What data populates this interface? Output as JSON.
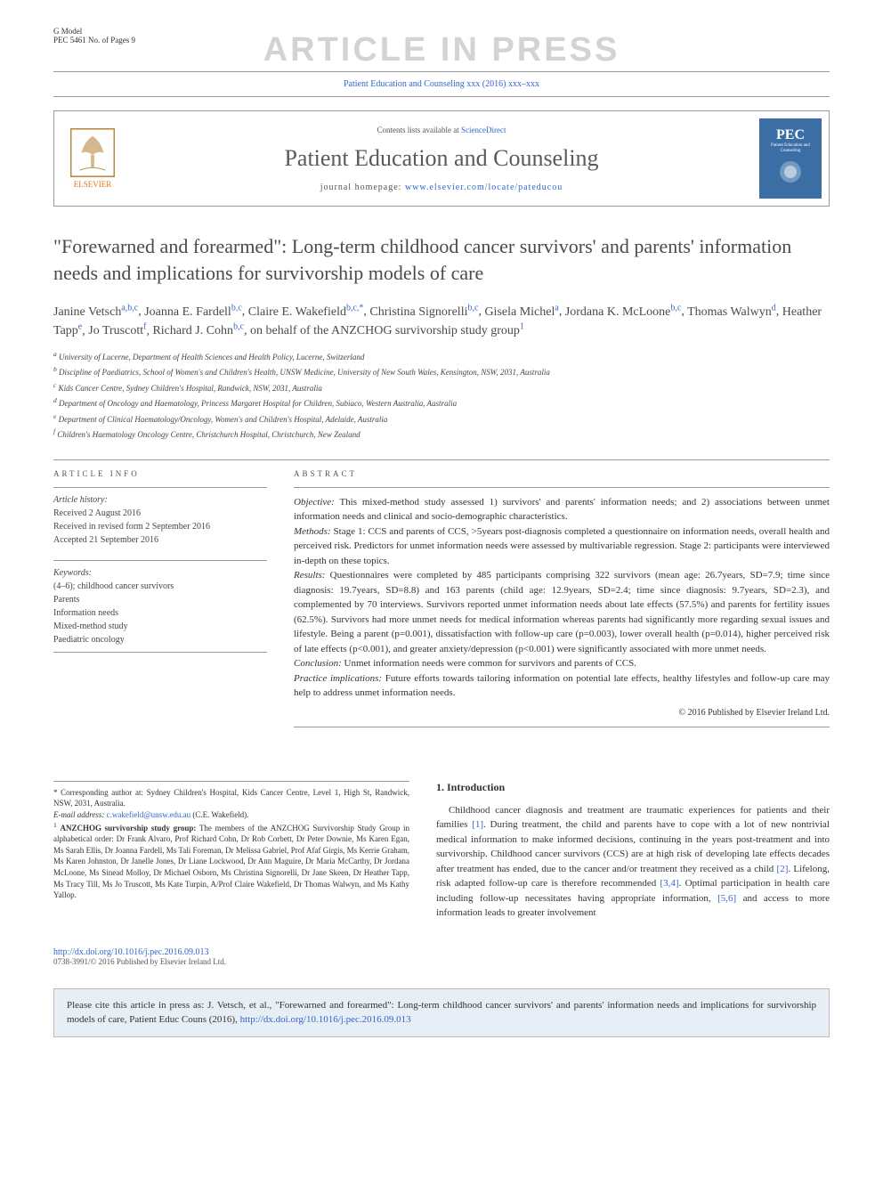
{
  "header": {
    "model_label": "G Model",
    "model_id": "PEC 5461 No. of Pages 9",
    "watermark": "ARTICLE IN PRESS",
    "citation_short": "Patient Education and Counseling xxx (2016) xxx–xxx"
  },
  "journal_box": {
    "elsevier_label": "ELSEVIER",
    "contents_text": "Contents lists available at ",
    "contents_link": "ScienceDirect",
    "journal_name": "Patient Education and Counseling",
    "homepage_label": "journal homepage: ",
    "homepage_url": "www.elsevier.com/locate/pateducou",
    "cover_title": "PEC",
    "cover_subtitle": "Patient Education and Counseling"
  },
  "article": {
    "title": "\"Forewarned and forearmed\": Long-term childhood cancer survivors' and parents' information needs and implications for survivorship models of care",
    "authors_html": "Janine Vetsch",
    "authors": [
      {
        "name": "Janine Vetsch",
        "aff": "a,b,c"
      },
      {
        "name": "Joanna E. Fardell",
        "aff": "b,c"
      },
      {
        "name": "Claire E. Wakefield",
        "aff": "b,c,*"
      },
      {
        "name": "Christina Signorelli",
        "aff": "b,c"
      },
      {
        "name": "Gisela Michel",
        "aff": "a"
      },
      {
        "name": "Jordana K. McLoone",
        "aff": "b,c"
      },
      {
        "name": "Thomas Walwyn",
        "aff": "d"
      },
      {
        "name": "Heather Tapp",
        "aff": "e"
      },
      {
        "name": "Jo Truscott",
        "aff": "f"
      },
      {
        "name": "Richard J. Cohn",
        "aff": "b,c"
      }
    ],
    "on_behalf": ", on behalf of the ANZCHOG survivorship study group",
    "on_behalf_sup": "1",
    "affiliations": [
      {
        "key": "a",
        "text": "University of Lucerne, Department of Health Sciences and Health Policy, Lucerne, Switzerland"
      },
      {
        "key": "b",
        "text": "Discipline of Paediatrics, School of Women's and Children's Health, UNSW Medicine, University of New South Wales, Kensington, NSW, 2031, Australia"
      },
      {
        "key": "c",
        "text": "Kids Cancer Centre, Sydney Children's Hospital, Randwick, NSW, 2031, Australia"
      },
      {
        "key": "d",
        "text": "Department of Oncology and Haematology, Princess Margaret Hospital for Children, Subiaco, Western Australia, Australia"
      },
      {
        "key": "e",
        "text": "Department of Clinical Haematology/Oncology, Women's and Children's Hospital, Adelaide, Australia"
      },
      {
        "key": "f",
        "text": "Children's Haematology Oncology Centre, Christchurch Hospital, Christchurch, New Zealand"
      }
    ]
  },
  "article_info": {
    "section_label": "ARTICLE INFO",
    "history_label": "Article history:",
    "received": "Received 2 August 2016",
    "revised": "Received in revised form 2 September 2016",
    "accepted": "Accepted 21 September 2016",
    "keywords_label": "Keywords:",
    "keywords": [
      "(4–6); childhood cancer survivors",
      "Parents",
      "Information needs",
      "Mixed-method study",
      "Paediatric oncology"
    ]
  },
  "abstract": {
    "section_label": "ABSTRACT",
    "objective_label": "Objective:",
    "objective": "This mixed-method study assessed 1) survivors' and parents' information needs; and 2) associations between unmet information needs and clinical and socio-demographic characteristics.",
    "methods_label": "Methods:",
    "methods": "Stage 1: CCS and parents of CCS, >5years post-diagnosis completed a questionnaire on information needs, overall health and perceived risk. Predictors for unmet information needs were assessed by multivariable regression. Stage 2: participants were interviewed in-depth on these topics.",
    "results_label": "Results:",
    "results": "Questionnaires were completed by 485 participants comprising 322 survivors (mean age: 26.7years, SD=7.9; time since diagnosis: 19.7years, SD=8.8) and 163 parents (child age: 12.9years, SD=2.4; time since diagnosis: 9.7years, SD=2.3), and complemented by 70 interviews. Survivors reported unmet information needs about late effects (57.5%) and parents for fertility issues (62.5%). Survivors had more unmet needs for medical information whereas parents had significantly more regarding sexual issues and lifestyle. Being a parent (p=0.001), dissatisfaction with follow-up care (p=0.003), lower overall health (p=0.014), higher perceived risk of late effects (p<0.001), and greater anxiety/depression (p<0.001) were significantly associated with more unmet needs.",
    "conclusion_label": "Conclusion:",
    "conclusion": "Unmet information needs were common for survivors and parents of CCS.",
    "practice_label": "Practice implications:",
    "practice": "Future efforts towards tailoring information on potential late effects, healthy lifestyles and follow-up care may help to address unmet information needs.",
    "copyright": "© 2016 Published by Elsevier Ireland Ltd."
  },
  "footnotes": {
    "corresponding": "* Corresponding author at: Sydney Children's Hospital, Kids Cancer Centre, Level 1, High St, Randwick, NSW, 2031, Australia.",
    "email_label": "E-mail address: ",
    "email": "c.wakefield@unsw.edu.au",
    "email_name": " (C.E. Wakefield).",
    "group_label": "ANZCHOG survivorship study group:",
    "group_text": " The members of the ANZCHOG Survivorship Study Group in alphabetical order: Dr Frank Alvaro, Prof Richard Cohn, Dr Rob Corbett, Dr Peter Downie, Ms Karen Egan, Ms Sarah Ellis, Dr Joanna Fardell, Ms Tali Foreman, Dr Melissa Gabriel, Prof Afaf Girgis, Ms Kerrie Graham, Ms Karen Johnston, Dr Janelle Jones, Dr Liane Lockwood, Dr Ann Maguire, Dr Maria McCarthy, Dr Jordana McLoone, Ms Sinead Molloy, Dr Michael Osborn, Ms Christina Signorelli, Dr Jane Skeen, Dr Heather Tapp, Ms Tracy Till, Ms Jo Truscott, Ms Kate Turpin, A/Prof Claire Wakefield, Dr Thomas Walwyn, and Ms Kathy Yallop."
  },
  "body": {
    "heading": "1. Introduction",
    "paragraph": "Childhood cancer diagnosis and treatment are traumatic experiences for patients and their families [1]. During treatment, the child and parents have to cope with a lot of new nontrivial medical information to make informed decisions, continuing in the years post-treatment and into survivorship. Childhood cancer survivors (CCS) are at high risk of developing late effects decades after treatment has ended, due to the cancer and/or treatment they received as a child [2]. Lifelong, risk adapted follow-up care is therefore recommended [3,4]. Optimal participation in health care including follow-up necessitates having appropriate information, [5,6] and access to more information leads to greater involvement",
    "refs": [
      "[1]",
      "[2]",
      "[3,4]",
      "[5,6]"
    ]
  },
  "footer": {
    "doi": "http://dx.doi.org/10.1016/j.pec.2016.09.013",
    "issn": "0738-3991/© 2016 Published by Elsevier Ireland Ltd."
  },
  "cite_box": {
    "text": "Please cite this article in press as: J. Vetsch, et al., \"Forewarned and forearmed\": Long-term childhood cancer survivors' and parents' information needs and implications for survivorship models of care, Patient Educ Couns (2016), ",
    "link": "http://dx.doi.org/10.1016/j.pec.2016.09.013"
  },
  "colors": {
    "link": "#3366cc",
    "text": "#333333",
    "watermark": "#d3d3d3",
    "border": "#999999",
    "elsevier_orange": "#e9711c",
    "citebox_bg": "#e8eef5"
  }
}
